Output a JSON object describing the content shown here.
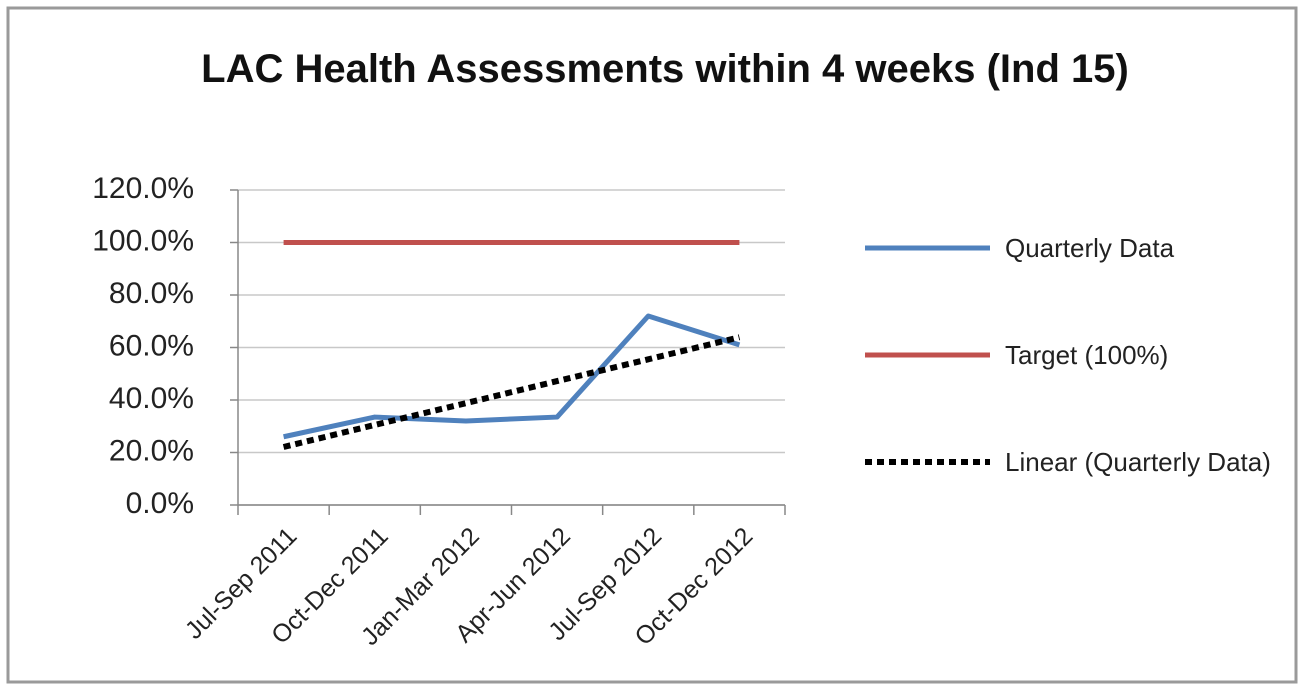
{
  "chart_data": {
    "type": "line",
    "title": "LAC Health Assessments within 4 weeks (Ind 15)",
    "categories": [
      "Jul-Sep 2011",
      "Oct-Dec 2011",
      "Jan-Mar 2012",
      "Apr-Jun 2012",
      "Jul-Sep 2012",
      "Oct-Dec 2012"
    ],
    "series": [
      {
        "name": "Quarterly Data",
        "color": "#4f81bd",
        "style": "solid",
        "values": [
          26,
          33.5,
          32,
          33.5,
          72,
          61
        ]
      },
      {
        "name": "Target (100%)",
        "color": "#c0504d",
        "style": "solid",
        "values": [
          100,
          100,
          100,
          100,
          100,
          100
        ]
      },
      {
        "name": "Linear (Quarterly Data)",
        "color": "#000000",
        "style": "dotted",
        "values": [
          22.1,
          30.5,
          38.8,
          47.2,
          55.5,
          63.9
        ]
      }
    ],
    "ylim": [
      0,
      120
    ],
    "yticks": [
      {
        "value": 0,
        "label": "0.0%"
      },
      {
        "value": 20,
        "label": "20.0%"
      },
      {
        "value": 40,
        "label": "40.0%"
      },
      {
        "value": 60,
        "label": "60.0%"
      },
      {
        "value": 80,
        "label": "80.0%"
      },
      {
        "value": 100,
        "label": "100.0%"
      },
      {
        "value": 120,
        "label": "120.0%"
      }
    ],
    "grid": true,
    "legend": "right"
  }
}
